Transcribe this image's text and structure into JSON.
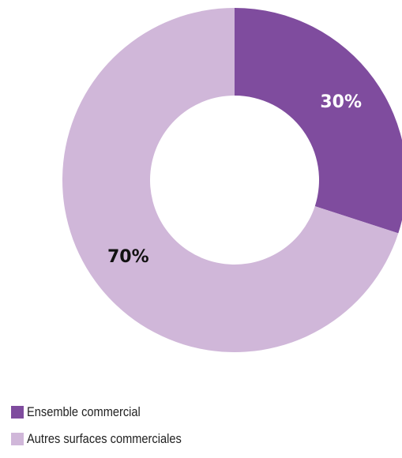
{
  "chart_data": {
    "type": "pie",
    "variant": "donut",
    "title": "",
    "categories": [
      "Ensemble commercial",
      "Autres surfaces commerciales"
    ],
    "values": [
      30,
      70
    ],
    "value_labels": [
      "30%",
      "70%"
    ],
    "colors": [
      "#7f4c9e",
      "#d0b7d9"
    ],
    "label_colors": [
      "#ffffff",
      "#111111"
    ],
    "legend_position": "bottom-left"
  },
  "legend": {
    "items": [
      {
        "label": "Ensemble commercial",
        "color": "#7f4c9e"
      },
      {
        "label": "Autres surfaces commerciales",
        "color": "#d0b7d9"
      }
    ]
  }
}
